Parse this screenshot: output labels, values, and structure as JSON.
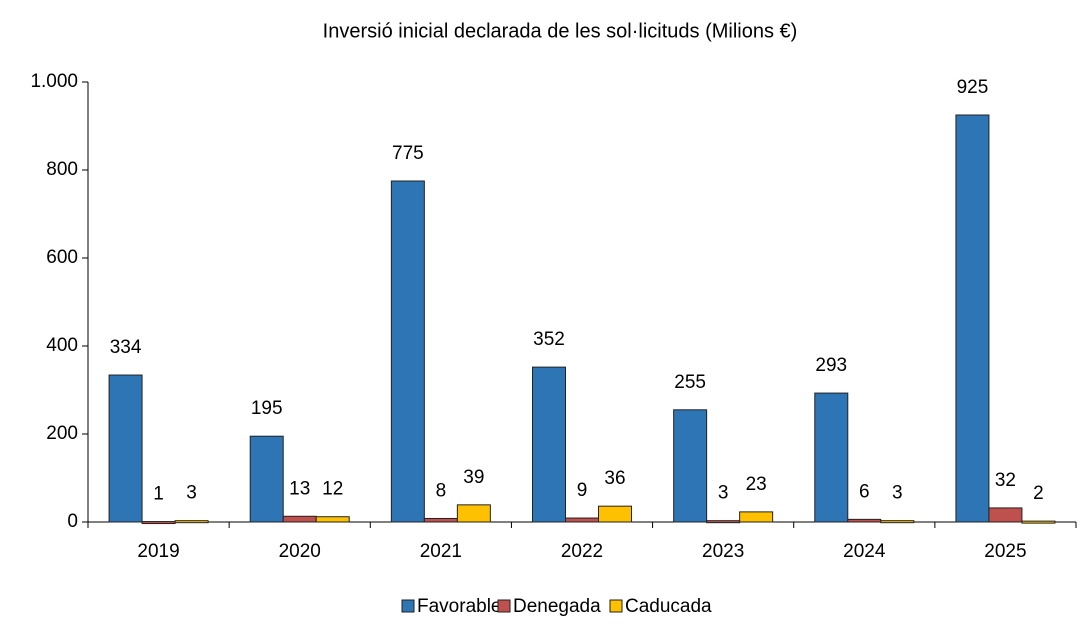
{
  "chart_data": {
    "type": "bar",
    "title": "Inversió  inicial declarada  de les sol·licituds (Milions €)",
    "categories": [
      "2019",
      "2020",
      "2021",
      "2022",
      "2023",
      "2024",
      "2025"
    ],
    "series": [
      {
        "name": "Favorable",
        "color": "#2e75b6",
        "values": [
          334,
          195,
          775,
          352,
          255,
          293,
          925
        ]
      },
      {
        "name": "Denegada",
        "color": "#c0504d",
        "values": [
          1,
          13,
          8,
          9,
          3,
          6,
          32
        ]
      },
      {
        "name": "Caducada",
        "color": "#ffc000",
        "values": [
          3,
          12,
          39,
          36,
          23,
          3,
          2
        ]
      }
    ],
    "ylim": [
      0,
      1000
    ],
    "yticks": [
      0,
      200,
      400,
      600,
      800,
      {
        "value": 1000,
        "label": "1.000"
      }
    ],
    "legend": "bottom"
  }
}
